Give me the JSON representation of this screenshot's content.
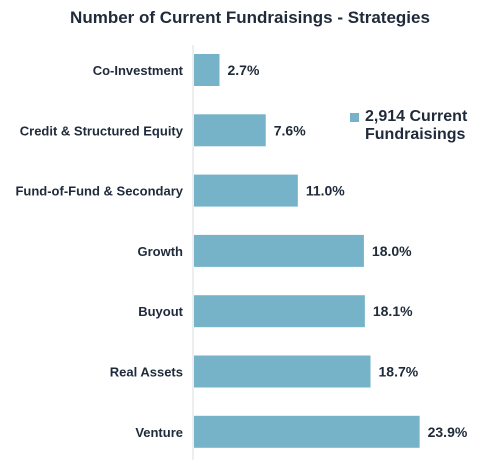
{
  "chart_data": {
    "type": "bar",
    "orientation": "horizontal",
    "title": "Number of Current Fundraisings - Strategies",
    "categories": [
      "Co-Investment",
      "Credit & Structured Equity",
      "Fund-of-Fund & Secondary",
      "Growth",
      "Buyout",
      "Real Assets",
      "Venture"
    ],
    "values": [
      2.7,
      7.6,
      11.0,
      18.0,
      18.1,
      18.7,
      23.9
    ],
    "value_labels": [
      "2.7%",
      "7.6%",
      "11.0%",
      "18.0%",
      "18.1%",
      "18.7%",
      "23.9%"
    ],
    "series": [
      {
        "name": "2,914 Current Fundraisings",
        "values": [
          2.7,
          7.6,
          11.0,
          18.0,
          18.1,
          18.7,
          23.9
        ]
      }
    ],
    "xlim": [
      0,
      25
    ],
    "grid": false,
    "legend_position": "right",
    "bar_color": "#77b3c8"
  }
}
